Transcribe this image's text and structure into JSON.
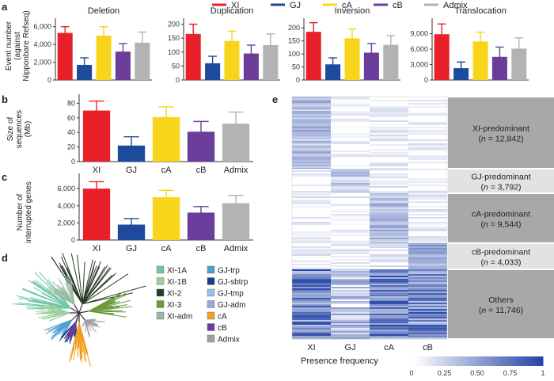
{
  "colors": {
    "XI": "#e8202a",
    "GJ": "#1e4a9c",
    "cA": "#f8d51a",
    "cB": "#6a3d9a",
    "Admix": "#b3b3b3"
  },
  "legend": [
    "XI",
    "GJ",
    "cA",
    "cB",
    "Admix"
  ],
  "panels": {
    "a": "a",
    "b": "b",
    "c": "c",
    "d": "d",
    "e": "e"
  },
  "chart_data": [
    {
      "type": "bar",
      "panel": "a",
      "title": "Deletion",
      "ylabel": "Event number (against Nipponbare Refseq)",
      "categories": [
        "XI",
        "GJ",
        "cA",
        "cB",
        "Admix"
      ],
      "values": [
        5300,
        1700,
        5000,
        3200,
        4200
      ],
      "errors": [
        700,
        800,
        1000,
        900,
        1200
      ],
      "ylim": [
        0,
        6600
      ],
      "yticks": [
        0,
        2000,
        4000,
        6000
      ],
      "ytick_labels": [
        "0",
        "2,000",
        "4,000",
        "6,000"
      ]
    },
    {
      "type": "bar",
      "panel": "a",
      "title": "Duplication",
      "categories": [
        "XI",
        "GJ",
        "cA",
        "cB",
        "Admix"
      ],
      "values": [
        165,
        60,
        140,
        95,
        125
      ],
      "errors": [
        35,
        25,
        35,
        30,
        40
      ],
      "ylim": [
        0,
        210
      ],
      "yticks": [
        0,
        50,
        100,
        150,
        200
      ],
      "ytick_labels": [
        "0",
        "50",
        "100",
        "150",
        "200"
      ]
    },
    {
      "type": "bar",
      "panel": "a",
      "title": "Inversion",
      "categories": [
        "XI",
        "GJ",
        "cA",
        "cB",
        "Admix"
      ],
      "values": [
        185,
        60,
        160,
        105,
        135
      ],
      "errors": [
        35,
        25,
        35,
        35,
        35
      ],
      "ylim": [
        0,
        225
      ],
      "yticks": [
        0,
        50,
        100,
        150,
        200
      ],
      "ytick_labels": [
        "0",
        "50",
        "100",
        "150",
        "200"
      ]
    },
    {
      "type": "bar",
      "panel": "a",
      "title": "Translocation",
      "categories": [
        "XI",
        "GJ",
        "cA",
        "cB",
        "Admix"
      ],
      "values": [
        8900,
        2300,
        7500,
        4500,
        6100
      ],
      "errors": [
        2000,
        1200,
        1800,
        1900,
        2100
      ],
      "ylim": [
        0,
        11400
      ],
      "yticks": [
        0,
        3000,
        6000,
        9000
      ],
      "ytick_labels": [
        "0",
        "3,000",
        "6,000",
        "9,000"
      ]
    },
    {
      "type": "bar",
      "panel": "b",
      "ylabel": "Size of sequences (Mb)",
      "categories": [
        "XI",
        "GJ",
        "cA",
        "cB",
        "Admix"
      ],
      "values": [
        70,
        22,
        61,
        41,
        52
      ],
      "errors": [
        13,
        12,
        14,
        14,
        16
      ],
      "ylim": [
        0,
        88
      ],
      "yticks": [
        0,
        20,
        40,
        60,
        80
      ],
      "ytick_labels": [
        "0",
        "20",
        "40",
        "60",
        "80"
      ]
    },
    {
      "type": "bar",
      "panel": "c",
      "ylabel": "Number of interrupted genes",
      "categories": [
        "XI",
        "GJ",
        "cA",
        "cB",
        "Admix"
      ],
      "values": [
        6000,
        1800,
        5000,
        3200,
        4300
      ],
      "errors": [
        800,
        700,
        800,
        700,
        900
      ],
      "ylim": [
        0,
        7400
      ],
      "yticks": [
        0,
        2000,
        4000,
        6000
      ],
      "ytick_labels": [
        "0",
        "2,000",
        "4,000",
        "6,000"
      ]
    },
    {
      "type": "heatmap",
      "panel": "e",
      "columns": [
        "XI",
        "GJ",
        "cA",
        "cB"
      ],
      "groups": [
        {
          "name": "XI-predominant",
          "n": "12,842"
        },
        {
          "name": "GJ-predominant",
          "n": "3,792"
        },
        {
          "name": "cA-predominant",
          "n": "9,544"
        },
        {
          "name": "cB-predominant",
          "n": "4,033"
        },
        {
          "name": "Others",
          "n": "11,746"
        }
      ],
      "colorbar": {
        "title": "Presence frequency",
        "ticks": [
          "0",
          "0.25",
          "0.50",
          "0.75",
          "1"
        ],
        "low": "#ffffff",
        "high": "#2646a8"
      }
    }
  ],
  "tree_legend": [
    {
      "label": "XI-1A",
      "color": "#6fc6a8"
    },
    {
      "label": "XI-1B",
      "color": "#9bd29b"
    },
    {
      "label": "XI-2",
      "color": "#2a3d2a"
    },
    {
      "label": "XI-3",
      "color": "#6a9a3a"
    },
    {
      "label": "XI-adm",
      "color": "#9bb8a0"
    },
    {
      "label": "GJ-trp",
      "color": "#4f9fd0"
    },
    {
      "label": "GJ-sbtrp",
      "color": "#1e3d8c"
    },
    {
      "label": "GJ-tmp",
      "color": "#8fc3e8"
    },
    {
      "label": "GJ-adm",
      "color": "#9ba6d8"
    },
    {
      "label": "cA",
      "color": "#f0a020"
    },
    {
      "label": "cB",
      "color": "#6a3d9a"
    },
    {
      "label": "Admix",
      "color": "#a0a0a0"
    }
  ]
}
